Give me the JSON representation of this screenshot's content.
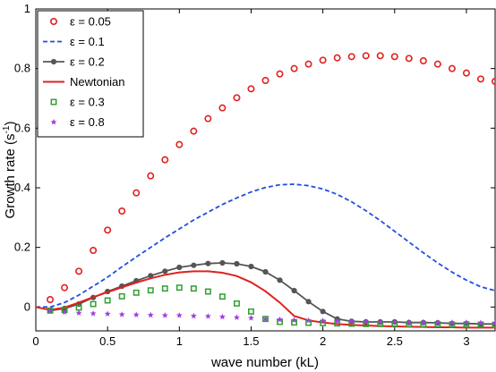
{
  "chart_data": {
    "type": "line",
    "xlabel": "wave number (kL)",
    "ylabel": "Growth rate (s",
    "ylabel_sup": "-1",
    "ylabel_close": ")",
    "xlim": [
      0,
      3.2
    ],
    "ylim": [
      -0.08,
      1.0
    ],
    "xticks": [
      0,
      0.5,
      1,
      1.5,
      2,
      2.5,
      3
    ],
    "xtick_labels": [
      "0",
      "0.5",
      "1",
      "1.5",
      "2",
      "2.5",
      "3"
    ],
    "yticks": [
      0,
      0.2,
      0.4,
      0.6,
      0.8,
      1
    ],
    "ytick_labels": [
      "0",
      "0.2",
      "0.4",
      "0.6",
      "0.8",
      "1"
    ],
    "grid": false,
    "legend_position": "top-left",
    "series": [
      {
        "name": "ε = 0.05",
        "style": "circles",
        "color": "#e02020",
        "x": [
          0.1,
          0.2,
          0.3,
          0.4,
          0.5,
          0.6,
          0.7,
          0.8,
          0.9,
          1.0,
          1.1,
          1.2,
          1.3,
          1.4,
          1.5,
          1.6,
          1.7,
          1.8,
          1.9,
          2.0,
          2.1,
          2.2,
          2.3,
          2.4,
          2.5,
          2.6,
          2.7,
          2.8,
          2.9,
          3.0,
          3.1,
          3.2
        ],
        "y": [
          0.025,
          0.065,
          0.12,
          0.19,
          0.258,
          0.322,
          0.383,
          0.44,
          0.494,
          0.545,
          0.59,
          0.632,
          0.668,
          0.702,
          0.732,
          0.76,
          0.782,
          0.8,
          0.815,
          0.828,
          0.836,
          0.84,
          0.843,
          0.843,
          0.84,
          0.834,
          0.826,
          0.815,
          0.8,
          0.785,
          0.765,
          0.757
        ]
      },
      {
        "name": "ε = 0.1",
        "style": "dashed",
        "color": "#1f4fe0",
        "x": [
          0.0,
          0.1,
          0.2,
          0.3,
          0.4,
          0.5,
          0.6,
          0.7,
          0.8,
          0.9,
          1.0,
          1.1,
          1.2,
          1.3,
          1.4,
          1.5,
          1.6,
          1.7,
          1.8,
          1.9,
          2.0,
          2.1,
          2.2,
          2.3,
          2.4,
          2.5,
          2.6,
          2.7,
          2.8,
          2.9,
          3.0,
          3.1,
          3.2
        ],
        "y": [
          0.0,
          0.0,
          0.015,
          0.04,
          0.07,
          0.1,
          0.135,
          0.168,
          0.2,
          0.232,
          0.262,
          0.292,
          0.318,
          0.344,
          0.366,
          0.386,
          0.401,
          0.41,
          0.412,
          0.407,
          0.396,
          0.378,
          0.353,
          0.323,
          0.29,
          0.254,
          0.218,
          0.182,
          0.148,
          0.117,
          0.09,
          0.068,
          0.055
        ]
      },
      {
        "name": "ε = 0.2",
        "style": "line-dots",
        "color": "#555555",
        "x": [
          0.1,
          0.2,
          0.3,
          0.4,
          0.5,
          0.6,
          0.7,
          0.8,
          0.9,
          1.0,
          1.1,
          1.2,
          1.3,
          1.4,
          1.5,
          1.6,
          1.7,
          1.8,
          1.9,
          2.0,
          2.1,
          2.2,
          2.3,
          2.4,
          2.5,
          2.6,
          2.7,
          2.8,
          2.9,
          3.0,
          3.1,
          3.2
        ],
        "y": [
          -0.012,
          -0.005,
          0.01,
          0.032,
          0.052,
          0.07,
          0.088,
          0.105,
          0.12,
          0.133,
          0.14,
          0.146,
          0.148,
          0.145,
          0.136,
          0.118,
          0.09,
          0.055,
          0.018,
          -0.015,
          -0.04,
          -0.048,
          -0.05,
          -0.05,
          -0.05,
          -0.052,
          -0.052,
          -0.053,
          -0.055,
          -0.055,
          -0.057,
          -0.057
        ]
      },
      {
        "name": "Newtonian",
        "style": "solid",
        "color": "#e02020",
        "x": [
          0.0,
          0.1,
          0.2,
          0.3,
          0.4,
          0.5,
          0.6,
          0.7,
          0.8,
          0.9,
          1.0,
          1.1,
          1.2,
          1.3,
          1.4,
          1.5,
          1.6,
          1.7,
          1.8,
          1.9,
          2.0,
          2.1,
          2.2,
          2.3,
          2.4,
          2.5,
          2.6,
          2.7,
          2.8,
          2.9,
          3.0,
          3.1,
          3.2
        ],
        "y": [
          0.0,
          -0.01,
          -0.002,
          0.015,
          0.033,
          0.05,
          0.066,
          0.082,
          0.096,
          0.108,
          0.116,
          0.12,
          0.12,
          0.115,
          0.104,
          0.083,
          0.053,
          0.015,
          -0.03,
          -0.045,
          -0.052,
          -0.057,
          -0.06,
          -0.062,
          -0.064,
          -0.065,
          -0.066,
          -0.067,
          -0.068,
          -0.068,
          -0.069,
          -0.069,
          -0.069
        ]
      },
      {
        "name": "ε = 0.3",
        "style": "squares",
        "color": "#2ea02e",
        "x": [
          0.1,
          0.2,
          0.3,
          0.4,
          0.5,
          0.6,
          0.7,
          0.8,
          0.9,
          1.0,
          1.1,
          1.2,
          1.3,
          1.4,
          1.5,
          1.6,
          1.7,
          1.8,
          1.9,
          2.0,
          2.1,
          2.2,
          2.3,
          2.4,
          2.5,
          2.6,
          2.7,
          2.8,
          2.9,
          3.0,
          3.1,
          3.2
        ],
        "y": [
          -0.012,
          -0.01,
          -0.002,
          0.01,
          0.022,
          0.036,
          0.048,
          0.056,
          0.062,
          0.065,
          0.062,
          0.052,
          0.035,
          0.012,
          -0.015,
          -0.04,
          -0.05,
          -0.052,
          -0.053,
          -0.054,
          -0.055,
          -0.056,
          -0.057,
          -0.057,
          -0.058,
          -0.058,
          -0.058,
          -0.058,
          -0.059,
          -0.059,
          -0.059,
          -0.06
        ]
      },
      {
        "name": "ε = 0.8",
        "style": "stars",
        "color": "#a040e0",
        "x": [
          0.1,
          0.2,
          0.3,
          0.4,
          0.5,
          0.6,
          0.7,
          0.8,
          0.9,
          1.0,
          1.1,
          1.2,
          1.3,
          1.4,
          1.5,
          1.6,
          1.7,
          1.8,
          1.9,
          2.0,
          2.1,
          2.2,
          2.3,
          2.4,
          2.5,
          2.6,
          2.7,
          2.8,
          2.9,
          3.0,
          3.1,
          3.2
        ],
        "y": [
          -0.012,
          -0.017,
          -0.02,
          -0.022,
          -0.023,
          -0.025,
          -0.026,
          -0.027,
          -0.028,
          -0.028,
          -0.03,
          -0.031,
          -0.033,
          -0.035,
          -0.037,
          -0.04,
          -0.042,
          -0.044,
          -0.045,
          -0.046,
          -0.047,
          -0.048,
          -0.049,
          -0.05,
          -0.05,
          -0.051,
          -0.051,
          -0.052,
          -0.052,
          -0.052,
          -0.053,
          -0.053
        ]
      }
    ]
  }
}
